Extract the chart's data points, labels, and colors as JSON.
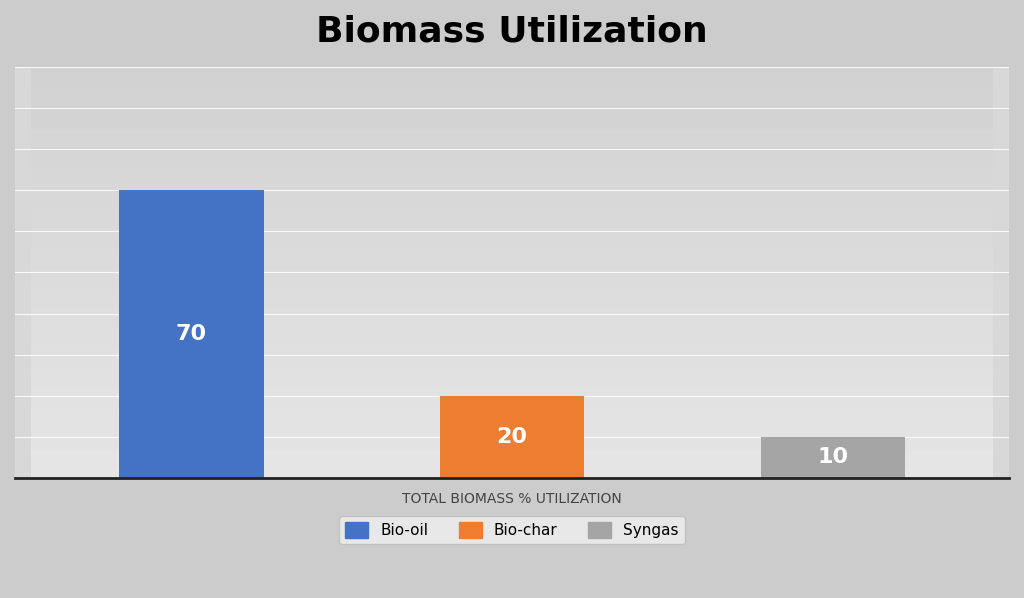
{
  "title": "Biomass Utilization",
  "title_fontsize": 26,
  "title_fontweight": "bold",
  "xlabel": "TOTAL BIOMASS % UTILIZATION",
  "xlabel_fontsize": 10,
  "categories": [
    "Bio-oil",
    "Bio-char",
    "Syngas"
  ],
  "values": [
    70,
    20,
    10
  ],
  "colors": [
    "#4472C4",
    "#ED7D31",
    "#A5A5A5"
  ],
  "label_color": "white",
  "label_fontsize": 16,
  "label_fontweight": "bold",
  "ylim": [
    0,
    100
  ],
  "bar_width": 0.45,
  "x_positions": [
    0,
    1,
    2
  ],
  "legend_labels": [
    "Bio-oil",
    "Bio-char",
    "Syngas"
  ],
  "bg_color_top": "#c8c8c8",
  "bg_color_bottom": "#e0e0e0",
  "gridline_color": "#cccccc",
  "spine_color": "#222222"
}
